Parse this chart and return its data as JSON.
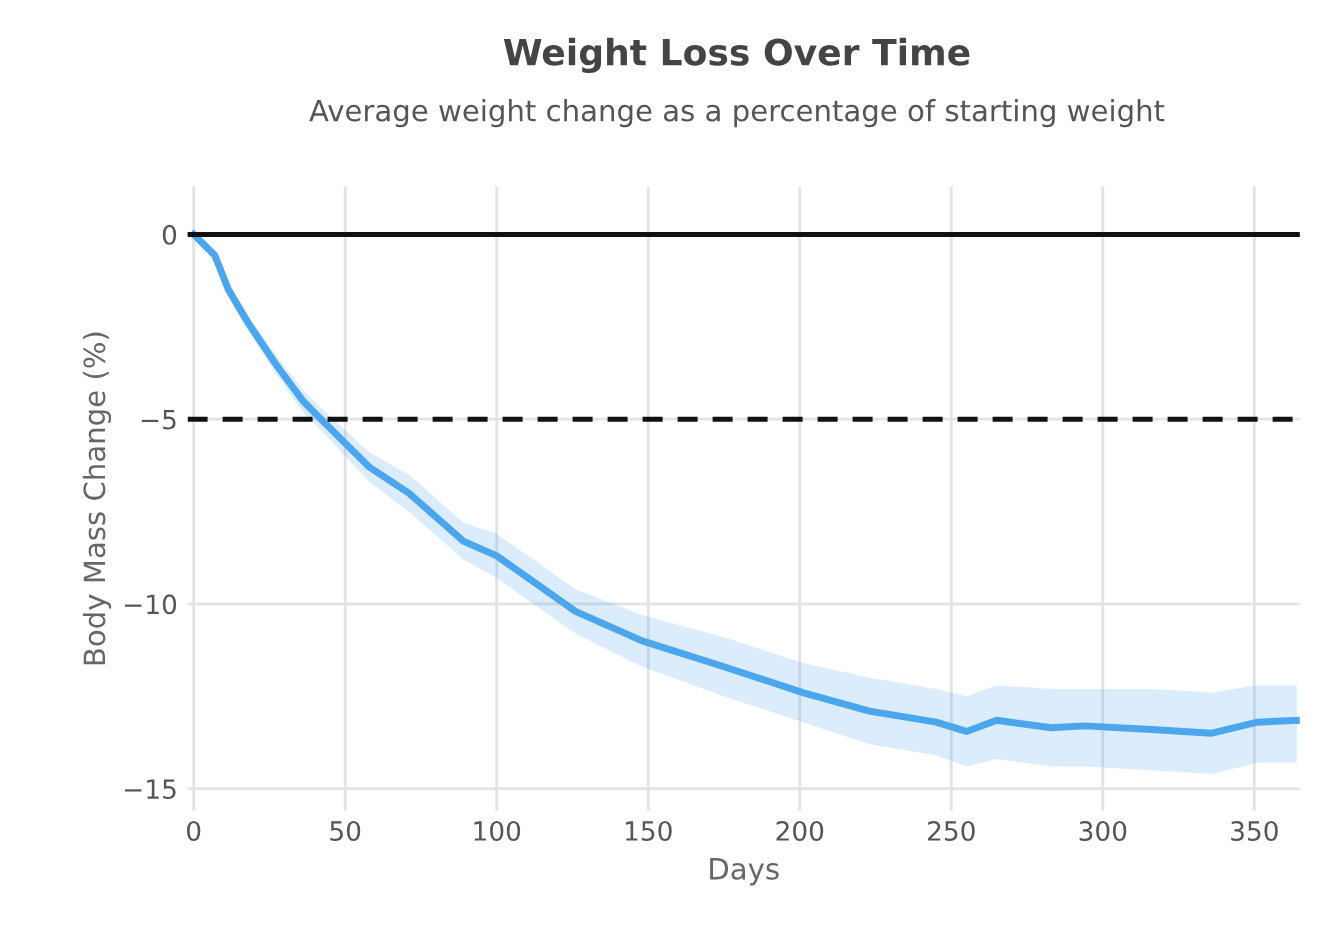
{
  "chart_data": {
    "type": "line",
    "title": "Weight Loss Over Time",
    "subtitle": "Average weight change as a percentage of starting weight",
    "xlabel": "Days",
    "ylabel": "Body Mass Change (%)",
    "x": [
      0,
      7,
      11.5,
      18,
      27,
      36,
      42,
      58,
      71,
      89,
      100,
      126,
      148,
      175,
      201,
      223,
      245,
      255,
      265,
      283,
      294,
      316,
      336,
      351,
      364
    ],
    "series": [
      {
        "color": "#4ba6ee",
        "values": [
          0,
          -0.57,
          -1.5,
          -2.4,
          -3.5,
          -4.5,
          -5.0,
          -6.3,
          -7.0,
          -8.3,
          -8.7,
          -10.2,
          -11.0,
          -11.7,
          -12.4,
          -12.9,
          -13.2,
          -13.45,
          -13.15,
          -13.35,
          -13.3,
          -13.4,
          -13.5,
          -13.2,
          -13.15
        ],
        "lower": [
          0,
          -0.65,
          -1.65,
          -2.6,
          -3.75,
          -4.8,
          -5.3,
          -6.7,
          -7.5,
          -8.8,
          -9.3,
          -10.8,
          -11.7,
          -12.5,
          -13.2,
          -13.8,
          -14.1,
          -14.4,
          -14.2,
          -14.4,
          -14.4,
          -14.5,
          -14.6,
          -14.3,
          -14.3
        ],
        "upper": [
          0,
          -0.5,
          -1.35,
          -2.2,
          -3.25,
          -4.2,
          -4.7,
          -5.9,
          -6.5,
          -7.8,
          -8.1,
          -9.6,
          -10.3,
          -10.9,
          -11.6,
          -12.0,
          -12.3,
          -12.5,
          -12.2,
          -12.3,
          -12.3,
          -12.3,
          -12.4,
          -12.2,
          -12.2
        ]
      }
    ],
    "ref_lines": [
      {
        "axis": "y",
        "value": 0,
        "color": "#111111",
        "line_style": "solid"
      },
      {
        "axis": "y",
        "value": -5,
        "color": "#111111",
        "line_style": "dashed"
      }
    ],
    "xlim": [
      -2,
      365
    ],
    "ylim": [
      -15.6,
      1.3
    ],
    "xticks": [
      0,
      50,
      100,
      150,
      200,
      250,
      300,
      350
    ],
    "yticks": [
      0,
      -5,
      -10,
      {
        "value": -15,
        "label": "−15"
      }
    ],
    "grid": true,
    "marker": "none",
    "line_style": "solid"
  }
}
